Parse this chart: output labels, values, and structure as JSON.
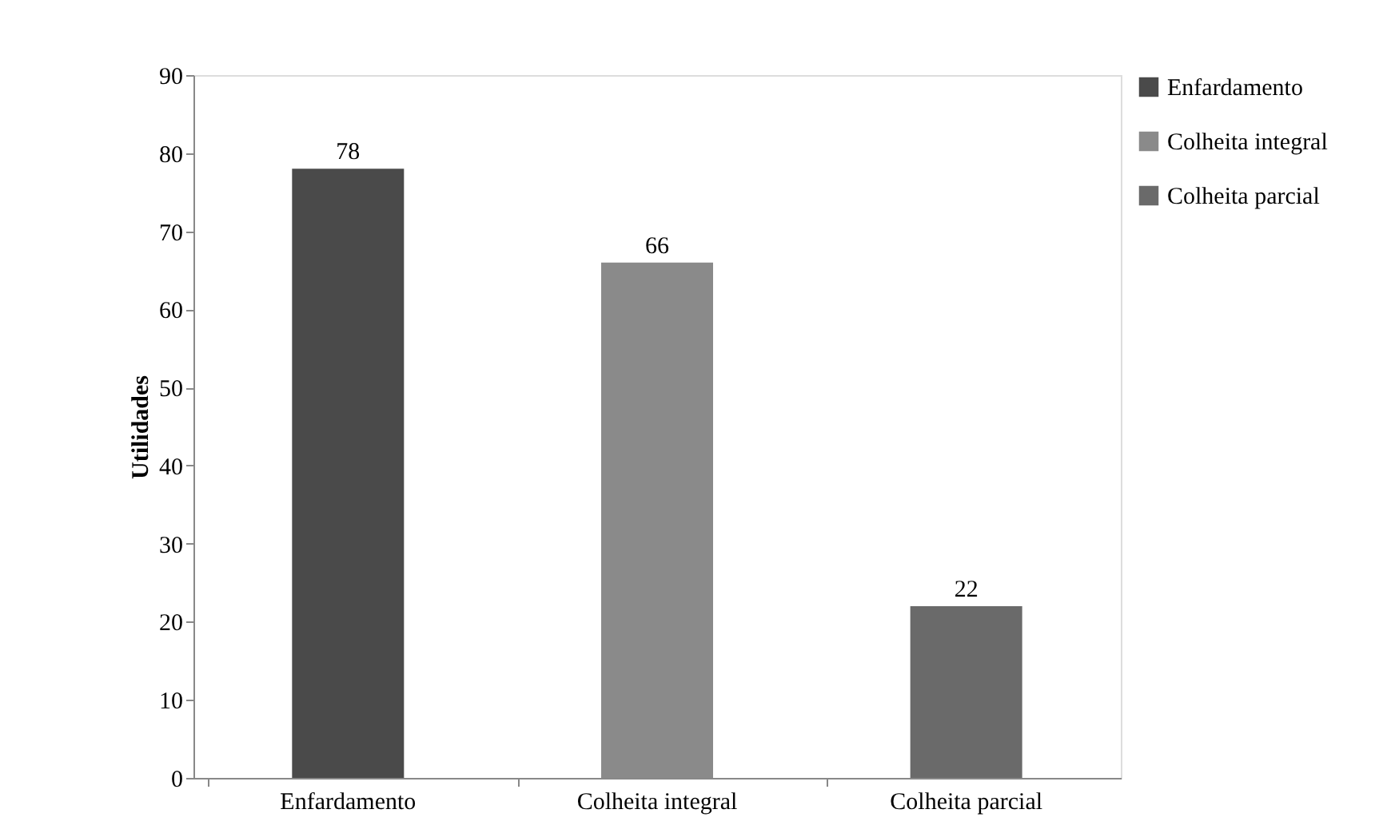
{
  "chart_data": {
    "type": "bar",
    "ylabel": "Utilidades",
    "categories": [
      "Enfardamento",
      "Colheita integral",
      "Colheita parcial"
    ],
    "series": [
      {
        "name": "Enfardamento",
        "color": "#4a4a4a",
        "values": [
          78,
          null,
          null
        ]
      },
      {
        "name": "Colheita integral",
        "color": "#8a8a8a",
        "values": [
          null,
          66,
          null
        ]
      },
      {
        "name": "Colheita parcial",
        "color": "#6a6a6a",
        "values": [
          null,
          null,
          22
        ]
      }
    ],
    "ylim": [
      0,
      90
    ],
    "yticks": [
      0,
      10,
      20,
      30,
      40,
      50,
      60,
      70,
      80,
      90
    ],
    "data_labels": true,
    "grid": false,
    "legend": "right"
  }
}
